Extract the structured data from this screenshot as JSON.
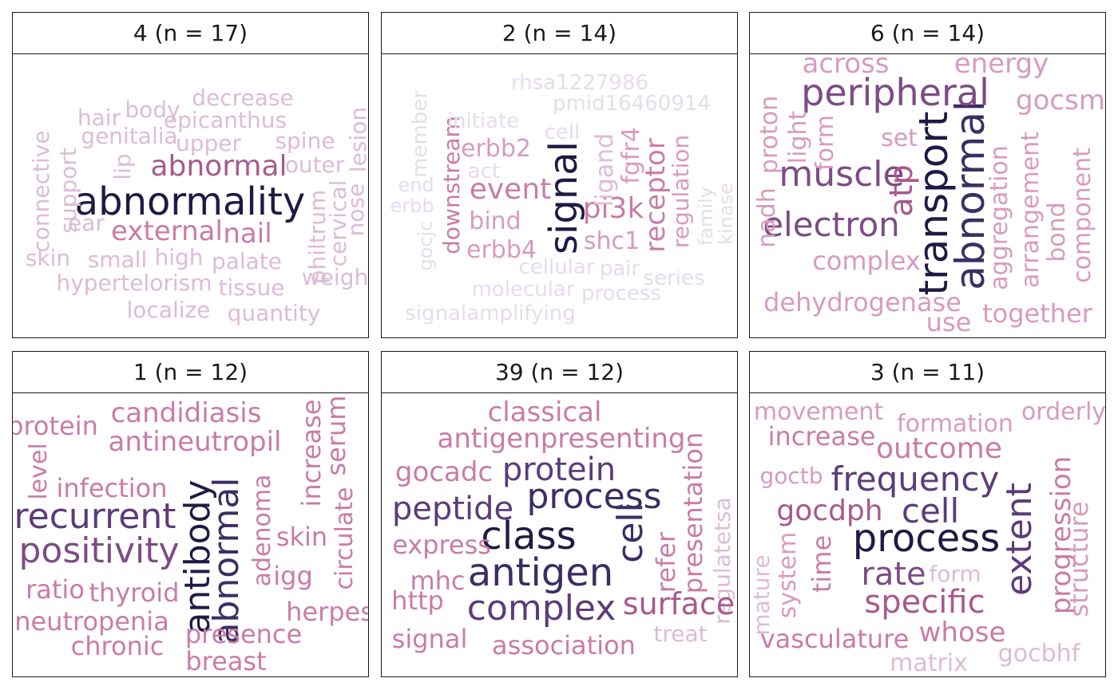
{
  "chart_data": {
    "type": "wordcloud",
    "panels": [
      {
        "title": "4 (n = 17)",
        "words": [
          "abnormality",
          "abnormal",
          "external",
          "nail",
          "decrease",
          "body",
          "hair",
          "epicanthus",
          "genitalia",
          "upper",
          "spine",
          "outer",
          "lesion",
          "connective",
          "support",
          "lip",
          "ear",
          "cervical",
          "nose",
          "philtrum",
          "skin",
          "small",
          "high",
          "palate",
          "hypertelorism",
          "tissue",
          "weight",
          "localize",
          "quantity"
        ]
      },
      {
        "title": "2 (n = 14)",
        "words": [
          "signal",
          "pi3k",
          "event",
          "erbb2",
          "erbb4",
          "bind",
          "shc1",
          "ligand",
          "fgfr4",
          "receptor",
          "regulation",
          "downstream",
          "rhsa1227986",
          "pmid16460914",
          "initiate",
          "cell",
          "act",
          "member",
          "end",
          "erbb",
          "gocjc",
          "family",
          "kinase",
          "cellular",
          "pair",
          "series",
          "molecular",
          "process",
          "signalamplifying"
        ]
      },
      {
        "title": "6 (n = 14)",
        "words": [
          "transport",
          "abnormal",
          "peripheral",
          "muscle",
          "electron",
          "atp",
          "across",
          "energy",
          "gocsm",
          "proton",
          "light",
          "form",
          "set",
          "nadh",
          "complex",
          "aggregation",
          "arrangement",
          "bond",
          "component",
          "dehydrogenase",
          "use",
          "together"
        ]
      },
      {
        "title": "1 (n = 12)",
        "words": [
          "antibody",
          "abnormal",
          "recurrent",
          "positivity",
          "protein",
          "candidiasis",
          "antineutropil",
          "increase",
          "serum",
          "level",
          "infection",
          "circulate",
          "adenoma",
          "skin",
          "igg",
          "ratio",
          "thyroid",
          "herpes",
          "neutropenia",
          "presence",
          "chronic",
          "breast"
        ]
      },
      {
        "title": "39 (n = 12)",
        "words": [
          "class",
          "process",
          "antigen",
          "cell",
          "complex",
          "protein",
          "peptide",
          "classical",
          "antigenpresenting",
          "gocadc",
          "presentation",
          "regulatetsa",
          "express",
          "refer",
          "mhc",
          "surface",
          "http",
          "signal",
          "association",
          "treat"
        ]
      },
      {
        "title": "3 (n = 11)",
        "words": [
          "process",
          "frequency",
          "cell",
          "rate",
          "extent",
          "specific",
          "outcome",
          "progression",
          "structure",
          "movement",
          "formation",
          "orderly",
          "increase",
          "goctb",
          "gocdph",
          "time",
          "system",
          "mature",
          "form",
          "vasculature",
          "whose",
          "matrix",
          "gocbhf"
        ]
      }
    ],
    "colors": {
      "c1": "#1f1a44",
      "c2": "#3c2d63",
      "c3": "#5b3c78",
      "c4": "#7c4c84",
      "c5": "#a65a8e",
      "c6": "#c97ca6",
      "c7": "#d89bbd",
      "c8": "#dcbcd6",
      "c9": "#e6dcec"
    }
  }
}
